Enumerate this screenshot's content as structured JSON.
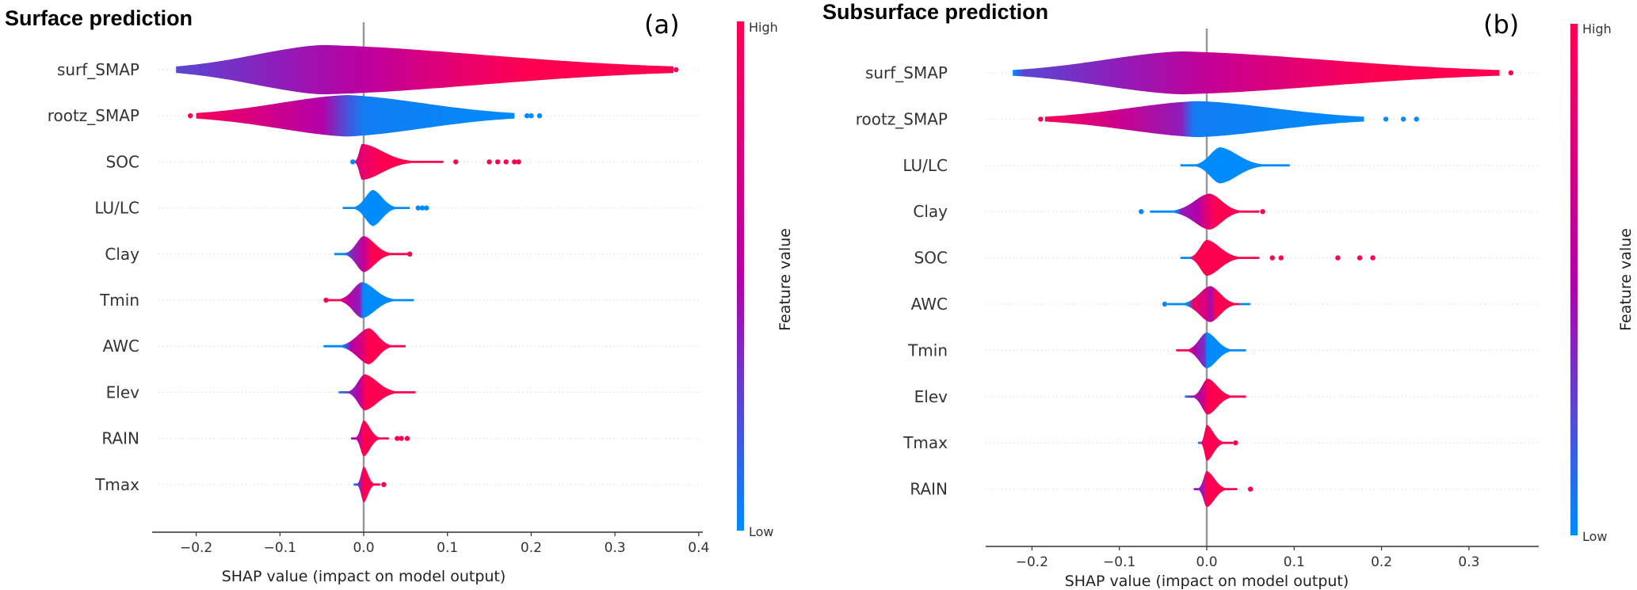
{
  "colors": {
    "low": "#008bfb",
    "mid": "#b400a8",
    "high": "#ff0051"
  },
  "chart_data": [
    {
      "type": "beeswarm-violin",
      "title": "Surface prediction",
      "panel_tag": "(a)",
      "xlabel": "SHAP value (impact on model output)",
      "xlim": [
        -0.253,
        0.405
      ],
      "xticks": [
        -0.2,
        -0.1,
        0.0,
        0.1,
        0.2,
        0.3,
        0.4
      ],
      "xtick_labels": [
        "−0.2",
        "−0.1",
        "0.0",
        "0.1",
        "0.2",
        "0.3",
        "0.4"
      ],
      "colorbar": {
        "high_label": "High",
        "low_label": "Low",
        "title": "Feature value"
      },
      "features": [
        {
          "name": "surf_SMAP",
          "min": -0.224,
          "max": 0.37,
          "peak": -0.05,
          "width": 0.5,
          "color_stops": [
            [
              -0.224,
              0.25
            ],
            [
              -0.1,
              0.4
            ],
            [
              0.0,
              0.55
            ],
            [
              0.12,
              0.85
            ],
            [
              0.2,
              1.0
            ],
            [
              0.37,
              1.0
            ]
          ],
          "outliers": [
            {
              "x": 0.373,
              "v": 1.0
            }
          ]
        },
        {
          "name": "rootz_SMAP",
          "min": -0.2,
          "max": 0.18,
          "peak": -0.02,
          "width": 0.42,
          "color_stops": [
            [
              -0.2,
              0.95
            ],
            [
              -0.12,
              0.7
            ],
            [
              -0.05,
              0.5
            ],
            [
              -0.02,
              0.2
            ],
            [
              0.0,
              0.05
            ],
            [
              0.18,
              0.0
            ]
          ],
          "outliers": [
            {
              "x": -0.207,
              "v": 1.0
            },
            {
              "x": 0.195,
              "v": 0.0
            },
            {
              "x": 0.2,
              "v": 0.0
            },
            {
              "x": 0.21,
              "v": 0.0
            }
          ]
        },
        {
          "name": "SOC",
          "min": -0.015,
          "max": 0.095,
          "peak": -0.002,
          "width": 0.42,
          "color_stops": [
            [
              -0.015,
              0.0
            ],
            [
              -0.01,
              0.7
            ],
            [
              0.0,
              0.85
            ],
            [
              0.02,
              1.0
            ],
            [
              0.095,
              1.0
            ]
          ],
          "outliers": [
            {
              "x": -0.013,
              "v": 0.0
            },
            {
              "x": 0.11,
              "v": 1.0
            },
            {
              "x": 0.15,
              "v": 1.0
            },
            {
              "x": 0.16,
              "v": 1.0
            },
            {
              "x": 0.17,
              "v": 1.0
            },
            {
              "x": 0.18,
              "v": 1.0
            },
            {
              "x": 0.185,
              "v": 1.0
            }
          ]
        },
        {
          "name": "LU/LC",
          "min": -0.025,
          "max": 0.055,
          "peak": 0.011,
          "width": 0.42,
          "color_stops": [
            [
              -0.025,
              0.0
            ],
            [
              0.055,
              0.0
            ]
          ],
          "outliers": [
            {
              "x": 0.065,
              "v": 0.0
            },
            {
              "x": 0.07,
              "v": 0.0
            },
            {
              "x": 0.075,
              "v": 0.0
            }
          ]
        },
        {
          "name": "Clay",
          "min": -0.035,
          "max": 0.052,
          "peak": 0.0,
          "width": 0.42,
          "color_stops": [
            [
              -0.035,
              0.0
            ],
            [
              -0.025,
              0.0
            ],
            [
              -0.015,
              0.35
            ],
            [
              0.0,
              0.6
            ],
            [
              0.01,
              1.0
            ],
            [
              0.052,
              1.0
            ]
          ],
          "outliers": [
            {
              "x": 0.055,
              "v": 1.0
            }
          ]
        },
        {
          "name": "Tmin",
          "min": -0.045,
          "max": 0.06,
          "peak": -0.002,
          "width": 0.42,
          "color_stops": [
            [
              -0.045,
              1.0
            ],
            [
              -0.03,
              1.0
            ],
            [
              -0.02,
              0.55
            ],
            [
              -0.005,
              0.4
            ],
            [
              0.0,
              0.0
            ],
            [
              0.06,
              0.0
            ]
          ],
          "outliers": [
            {
              "x": -0.045,
              "v": 1.0
            }
          ]
        },
        {
          "name": "AWC",
          "min": -0.048,
          "max": 0.05,
          "peak": 0.006,
          "width": 0.42,
          "color_stops": [
            [
              -0.048,
              0.0
            ],
            [
              -0.025,
              0.0
            ],
            [
              -0.015,
              0.5
            ],
            [
              0.0,
              0.8
            ],
            [
              0.005,
              1.0
            ],
            [
              0.05,
              1.0
            ]
          ],
          "outliers": []
        },
        {
          "name": "Elev",
          "min": -0.03,
          "max": 0.062,
          "peak": 0.001,
          "width": 0.42,
          "color_stops": [
            [
              -0.03,
              0.0
            ],
            [
              -0.02,
              0.3
            ],
            [
              -0.005,
              0.55
            ],
            [
              0.003,
              1.0
            ],
            [
              0.062,
              1.0
            ]
          ],
          "outliers": []
        },
        {
          "name": "RAIN",
          "min": -0.015,
          "max": 0.03,
          "peak": 0.0,
          "width": 0.42,
          "color_stops": [
            [
              -0.015,
              0.5
            ],
            [
              -0.005,
              0.6
            ],
            [
              0.0,
              1.0
            ],
            [
              0.03,
              1.0
            ]
          ],
          "outliers": [
            {
              "x": 0.04,
              "v": 1.0
            },
            {
              "x": 0.045,
              "v": 1.0
            },
            {
              "x": 0.052,
              "v": 1.0
            }
          ]
        },
        {
          "name": "Tmax",
          "min": -0.012,
          "max": 0.02,
          "peak": 0.0,
          "width": 0.42,
          "color_stops": [
            [
              -0.012,
              0.0
            ],
            [
              -0.005,
              0.4
            ],
            [
              0.0,
              1.0
            ],
            [
              0.02,
              1.0
            ]
          ],
          "outliers": [
            {
              "x": 0.024,
              "v": 1.0
            }
          ]
        }
      ]
    },
    {
      "type": "beeswarm-violin",
      "title": "Subsurface prediction",
      "panel_tag": "(b)",
      "xlabel": "SHAP value (impact on model output)",
      "xlim": [
        -0.253,
        0.37
      ],
      "xticks": [
        -0.2,
        -0.1,
        0.0,
        0.1,
        0.2,
        0.3
      ],
      "xtick_labels": [
        "−0.2",
        "−0.1",
        "0.0",
        "0.1",
        "0.2",
        "0.3"
      ],
      "colorbar": {
        "high_label": "High",
        "low_label": "Low",
        "title": "Feature value"
      },
      "features": [
        {
          "name": "surf_SMAP",
          "min": -0.222,
          "max": 0.335,
          "peak": -0.03,
          "width": 0.5,
          "color_stops": [
            [
              -0.222,
              0.0
            ],
            [
              -0.21,
              0.25
            ],
            [
              -0.1,
              0.4
            ],
            [
              0.0,
              0.6
            ],
            [
              0.12,
              0.85
            ],
            [
              0.2,
              1.0
            ],
            [
              0.335,
              1.0
            ]
          ],
          "outliers": [
            {
              "x": 0.348,
              "v": 1.0
            }
          ]
        },
        {
          "name": "rootz_SMAP",
          "min": -0.185,
          "max": 0.18,
          "peak": -0.01,
          "width": 0.42,
          "color_stops": [
            [
              -0.185,
              0.95
            ],
            [
              -0.1,
              0.65
            ],
            [
              -0.03,
              0.4
            ],
            [
              -0.015,
              0.05
            ],
            [
              0.18,
              0.0
            ]
          ],
          "outliers": [
            {
              "x": -0.19,
              "v": 1.0
            },
            {
              "x": 0.205,
              "v": 0.0
            },
            {
              "x": 0.225,
              "v": 0.0
            },
            {
              "x": 0.24,
              "v": 0.0
            }
          ]
        },
        {
          "name": "LU/LC",
          "min": -0.03,
          "max": 0.095,
          "peak": 0.015,
          "width": 0.42,
          "color_stops": [
            [
              -0.03,
              0.0
            ],
            [
              0.095,
              0.0
            ]
          ],
          "outliers": []
        },
        {
          "name": "Clay",
          "min": -0.065,
          "max": 0.06,
          "peak": 0.003,
          "width": 0.42,
          "color_stops": [
            [
              -0.065,
              0.0
            ],
            [
              -0.035,
              0.0
            ],
            [
              -0.03,
              0.4
            ],
            [
              -0.01,
              0.5
            ],
            [
              0.0,
              0.8
            ],
            [
              0.01,
              1.0
            ],
            [
              0.06,
              1.0
            ]
          ],
          "outliers": [
            {
              "x": -0.075,
              "v": 0.0
            },
            {
              "x": 0.064,
              "v": 1.0
            }
          ]
        },
        {
          "name": "SOC",
          "min": -0.03,
          "max": 0.06,
          "peak": 0.0,
          "width": 0.42,
          "color_stops": [
            [
              -0.03,
              0.0
            ],
            [
              -0.02,
              0.0
            ],
            [
              -0.015,
              1.0
            ],
            [
              0.06,
              1.0
            ]
          ],
          "outliers": [
            {
              "x": 0.075,
              "v": 1.0
            },
            {
              "x": 0.085,
              "v": 1.0
            },
            {
              "x": 0.15,
              "v": 1.0
            },
            {
              "x": 0.175,
              "v": 1.0
            },
            {
              "x": 0.19,
              "v": 1.0
            }
          ]
        },
        {
          "name": "AWC",
          "min": -0.045,
          "max": 0.05,
          "peak": 0.004,
          "width": 0.42,
          "color_stops": [
            [
              -0.045,
              0.0
            ],
            [
              -0.022,
              0.0
            ],
            [
              -0.015,
              0.9
            ],
            [
              0.0,
              0.7
            ],
            [
              0.005,
              0.45
            ],
            [
              0.01,
              1.0
            ],
            [
              0.035,
              1.0
            ],
            [
              0.04,
              0.0
            ],
            [
              0.05,
              0.0
            ]
          ],
          "outliers": [
            {
              "x": -0.048,
              "v": 0.0
            }
          ]
        },
        {
          "name": "Tmin",
          "min": -0.035,
          "max": 0.045,
          "peak": 0.0,
          "width": 0.42,
          "color_stops": [
            [
              -0.035,
              1.0
            ],
            [
              -0.022,
              1.0
            ],
            [
              -0.015,
              0.5
            ],
            [
              -0.002,
              0.3
            ],
            [
              0.0,
              0.0
            ],
            [
              0.045,
              0.0
            ]
          ],
          "outliers": []
        },
        {
          "name": "Elev",
          "min": -0.025,
          "max": 0.045,
          "peak": 0.001,
          "width": 0.42,
          "color_stops": [
            [
              -0.025,
              0.0
            ],
            [
              -0.018,
              0.4
            ],
            [
              -0.005,
              0.6
            ],
            [
              0.002,
              1.0
            ],
            [
              0.045,
              1.0
            ]
          ],
          "outliers": []
        },
        {
          "name": "Tmax",
          "min": -0.01,
          "max": 0.03,
          "peak": 0.0,
          "width": 0.42,
          "color_stops": [
            [
              -0.01,
              0.0
            ],
            [
              -0.005,
              0.9
            ],
            [
              0.0,
              1.0
            ],
            [
              0.03,
              1.0
            ]
          ],
          "outliers": [
            {
              "x": 0.033,
              "v": 1.0
            }
          ]
        },
        {
          "name": "RAIN",
          "min": -0.015,
          "max": 0.035,
          "peak": 0.0,
          "width": 0.42,
          "color_stops": [
            [
              -0.015,
              0.4
            ],
            [
              -0.005,
              0.4
            ],
            [
              0.0,
              1.0
            ],
            [
              0.035,
              1.0
            ]
          ],
          "outliers": [
            {
              "x": 0.05,
              "v": 1.0
            }
          ]
        }
      ]
    }
  ]
}
